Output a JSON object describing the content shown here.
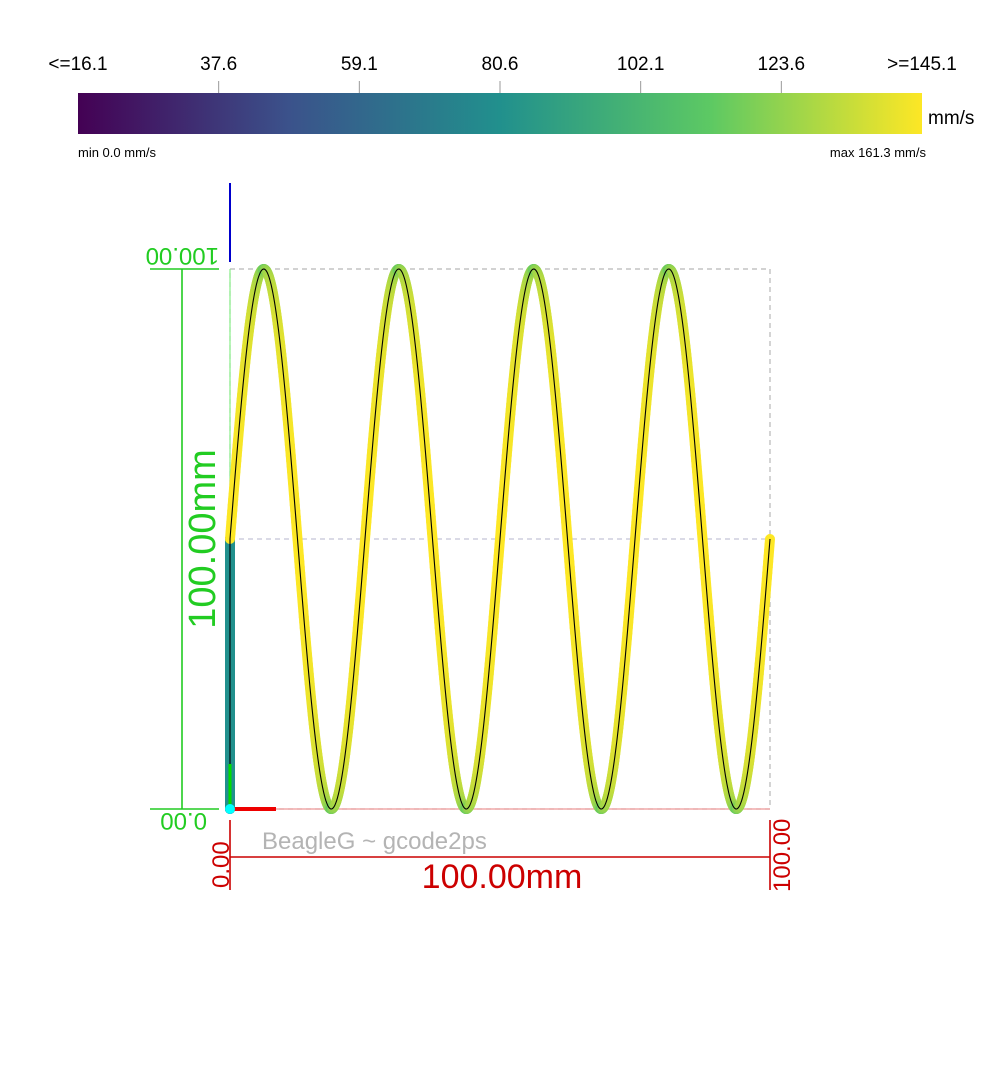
{
  "colorbar": {
    "tick_labels": [
      "<=16.1",
      "37.6",
      "59.1",
      "80.6",
      "102.1",
      "123.6",
      ">=145.1"
    ],
    "unit": "mm/s",
    "min_label": "min 0.0 mm/s",
    "max_label": "max 161.3 mm/s",
    "min": 0.0,
    "max": 161.3,
    "colors": [
      "#440154",
      "#3b528b",
      "#21908d",
      "#5dc963",
      "#fde725"
    ]
  },
  "watermark": "BeagleG ~ gcode2ps",
  "x_axis": {
    "start_label": "0.00",
    "end_label": "100.00",
    "span_label": "100.00mm",
    "color": "#cc0000"
  },
  "y_axis": {
    "start_label": "0.00",
    "end_label": "100.00",
    "span_label": "100.00mm",
    "color": "#22cc22"
  },
  "chart_data": {
    "type": "line",
    "xlim": [
      0,
      100
    ],
    "ylim": [
      0,
      100
    ],
    "x_unit": "mm",
    "y_unit": "mm",
    "path_segments": [
      {
        "kind": "travel",
        "from": [
          0,
          0
        ],
        "to": [
          0,
          50
        ]
      },
      {
        "kind": "travel",
        "from": [
          0,
          50
        ],
        "to": [
          0,
          0
        ]
      },
      {
        "kind": "sine",
        "x_start": 0,
        "x_end": 100,
        "offset": 50,
        "amplitude": 50,
        "periods": 4,
        "phase_deg": 90
      }
    ],
    "speed_mm_s": {
      "travel_min": 0.0,
      "travel_peak": 80,
      "sine_min": 120,
      "sine_max": 161.3
    },
    "grid": false
  }
}
